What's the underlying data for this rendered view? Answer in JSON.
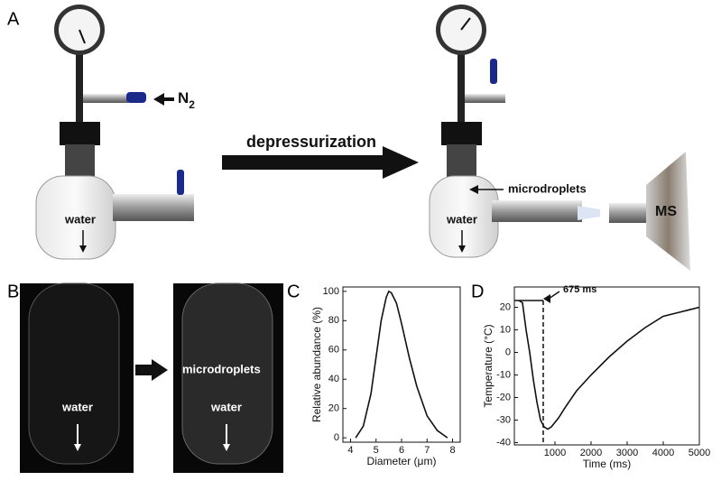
{
  "panel_labels": [
    "A",
    "B",
    "C",
    "D"
  ],
  "panel_a": {
    "gas": "N",
    "gas_sub": "2",
    "process": "depressurization",
    "water_left": "water",
    "water_right": "water",
    "droplets": "microdroplets",
    "detector": "MS"
  },
  "panel_b": {
    "water_left": "water",
    "water_right": "water",
    "droplets": "microdroplets"
  },
  "chart_data": [
    {
      "type": "line",
      "x_label": "Diameter (μm)",
      "y_label": "Relative abundance (%)",
      "x": [
        4.2,
        4.5,
        4.8,
        5.0,
        5.2,
        5.4,
        5.5,
        5.6,
        5.8,
        6.0,
        6.3,
        6.6,
        7.0,
        7.4,
        7.8
      ],
      "series": [
        {
          "color": "#111111",
          "values": [
            0,
            8,
            30,
            55,
            80,
            96,
            100,
            99,
            92,
            78,
            55,
            35,
            15,
            5,
            0
          ]
        }
      ],
      "xlim": [
        3.7,
        8.3
      ],
      "xticks": [
        4,
        5,
        6,
        7,
        8
      ],
      "ylim": [
        -3,
        103
      ],
      "yticks": [
        0,
        20,
        40,
        60,
        80,
        100
      ]
    },
    {
      "type": "line",
      "x_label": "Time (ms)",
      "y_label": "Temperature (°C)",
      "x": [
        0,
        100,
        200,
        300,
        400,
        500,
        600,
        700,
        800,
        900,
        1100,
        1300,
        1600,
        2000,
        2500,
        3000,
        3500,
        4000,
        4500,
        5000
      ],
      "series": [
        {
          "color": "#111111",
          "values": [
            23,
            22,
            10,
            0,
            -12,
            -22,
            -30,
            -33,
            -34,
            -33,
            -29,
            -24,
            -17,
            -10,
            -2,
            5,
            11,
            16,
            18,
            20
          ]
        }
      ],
      "xlim": [
        -125,
        5000
      ],
      "xticks": [
        1000,
        2000,
        3000,
        4000,
        5000
      ],
      "ylim": [
        -41,
        29
      ],
      "yticks": [
        -40,
        -30,
        -20,
        -10,
        0,
        10,
        20
      ],
      "annotation": {
        "x": 675,
        "y": 23,
        "label": "675 ms"
      }
    }
  ]
}
